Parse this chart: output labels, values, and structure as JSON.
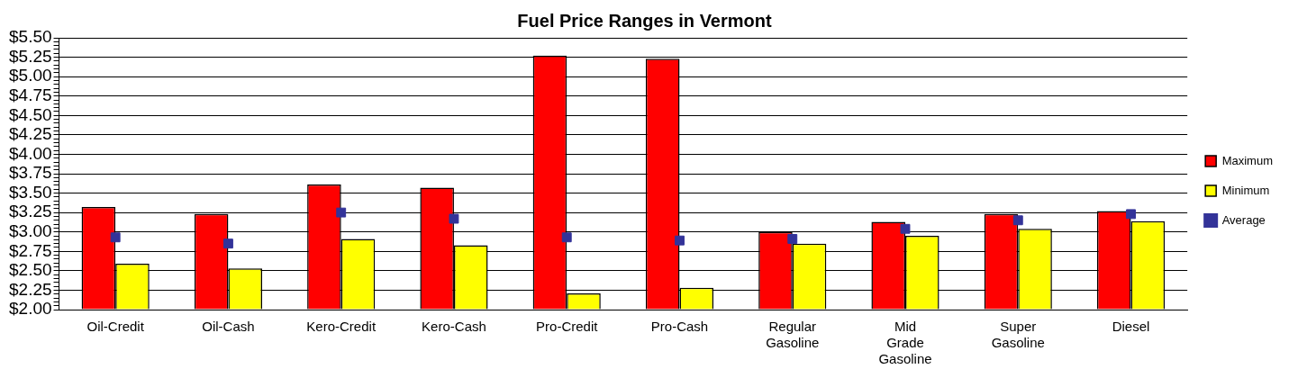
{
  "chart_data": {
    "type": "bar",
    "title": "Fuel Price Ranges in Vermont",
    "categories": [
      "Oil-Credit",
      "Oil-Cash",
      "Kero-Credit",
      "Kero-Cash",
      "Pro-Credit",
      "Pro-Cash",
      "Regular Gasoline",
      "Mid Grade Gasoline",
      "Super Gasoline",
      "Diesel"
    ],
    "series": [
      {
        "name": "Maximum",
        "color": "#ff0000",
        "values": [
          3.32,
          3.23,
          3.61,
          3.57,
          5.27,
          5.23,
          3.0,
          3.13,
          3.23,
          3.27
        ]
      },
      {
        "name": "Minimum",
        "color": "#ffff00",
        "values": [
          2.59,
          2.53,
          2.91,
          2.83,
          2.21,
          2.28,
          2.85,
          2.95,
          3.04,
          3.14
        ]
      },
      {
        "name": "Average",
        "type": "scatter",
        "color": "#333399",
        "values": [
          2.93,
          2.85,
          3.25,
          3.17,
          2.93,
          2.89,
          2.91,
          3.04,
          3.15,
          3.23
        ]
      }
    ],
    "ylim": [
      2.0,
      5.5
    ],
    "yticks": [
      {
        "value": 2.0,
        "label": "$2.00"
      },
      {
        "value": 2.05,
        "label": null
      },
      {
        "value": 2.1,
        "label": null
      },
      {
        "value": 2.15,
        "label": null
      },
      {
        "value": 2.2,
        "label": null
      },
      {
        "value": 2.25,
        "label": "$2.25"
      },
      {
        "value": 2.3,
        "label": null
      },
      {
        "value": 2.35,
        "label": null
      },
      {
        "value": 2.4,
        "label": null
      },
      {
        "value": 2.45,
        "label": null
      },
      {
        "value": 2.5,
        "label": "$2.50"
      },
      {
        "value": 2.55,
        "label": null
      },
      {
        "value": 2.6,
        "label": null
      },
      {
        "value": 2.65,
        "label": null
      },
      {
        "value": 2.7,
        "label": null
      },
      {
        "value": 2.75,
        "label": "$2.75"
      },
      {
        "value": 2.8,
        "label": null
      },
      {
        "value": 2.85,
        "label": null
      },
      {
        "value": 2.9,
        "label": null
      },
      {
        "value": 2.95,
        "label": null
      },
      {
        "value": 3.0,
        "label": "$3.00"
      },
      {
        "value": 3.05,
        "label": null
      },
      {
        "value": 3.1,
        "label": null
      },
      {
        "value": 3.15,
        "label": null
      },
      {
        "value": 3.2,
        "label": null
      },
      {
        "value": 3.25,
        "label": "$3.25"
      },
      {
        "value": 3.3,
        "label": null
      },
      {
        "value": 3.35,
        "label": null
      },
      {
        "value": 3.4,
        "label": null
      },
      {
        "value": 3.45,
        "label": null
      },
      {
        "value": 3.5,
        "label": "$3.50"
      },
      {
        "value": 3.55,
        "label": null
      },
      {
        "value": 3.6,
        "label": null
      },
      {
        "value": 3.65,
        "label": null
      },
      {
        "value": 3.7,
        "label": null
      },
      {
        "value": 3.75,
        "label": "$3.75"
      },
      {
        "value": 3.8,
        "label": null
      },
      {
        "value": 3.85,
        "label": null
      },
      {
        "value": 3.9,
        "label": null
      },
      {
        "value": 3.95,
        "label": null
      },
      {
        "value": 4.0,
        "label": "$4.00"
      },
      {
        "value": 4.05,
        "label": null
      },
      {
        "value": 4.1,
        "label": null
      },
      {
        "value": 4.15,
        "label": null
      },
      {
        "value": 4.2,
        "label": null
      },
      {
        "value": 4.25,
        "label": "$4.25"
      },
      {
        "value": 4.3,
        "label": null
      },
      {
        "value": 4.35,
        "label": null
      },
      {
        "value": 4.4,
        "label": null
      },
      {
        "value": 4.45,
        "label": null
      },
      {
        "value": 4.5,
        "label": "$4.50"
      },
      {
        "value": 4.55,
        "label": null
      },
      {
        "value": 4.6,
        "label": null
      },
      {
        "value": 4.65,
        "label": null
      },
      {
        "value": 4.7,
        "label": null
      },
      {
        "value": 4.75,
        "label": "$4.75"
      },
      {
        "value": 4.8,
        "label": null
      },
      {
        "value": 4.85,
        "label": null
      },
      {
        "value": 4.9,
        "label": null
      },
      {
        "value": 4.95,
        "label": null
      },
      {
        "value": 5.0,
        "label": "$5.00"
      },
      {
        "value": 5.05,
        "label": null
      },
      {
        "value": 5.1,
        "label": null
      },
      {
        "value": 5.15,
        "label": null
      },
      {
        "value": 5.2,
        "label": null
      },
      {
        "value": 5.25,
        "label": "$5.25"
      },
      {
        "value": 5.3,
        "label": null
      },
      {
        "value": 5.35,
        "label": null
      },
      {
        "value": 5.4,
        "label": null
      },
      {
        "value": 5.45,
        "label": null
      },
      {
        "value": 5.5,
        "label": "$5.50"
      }
    ],
    "grid": "y",
    "legend": "right",
    "marker": "square"
  }
}
